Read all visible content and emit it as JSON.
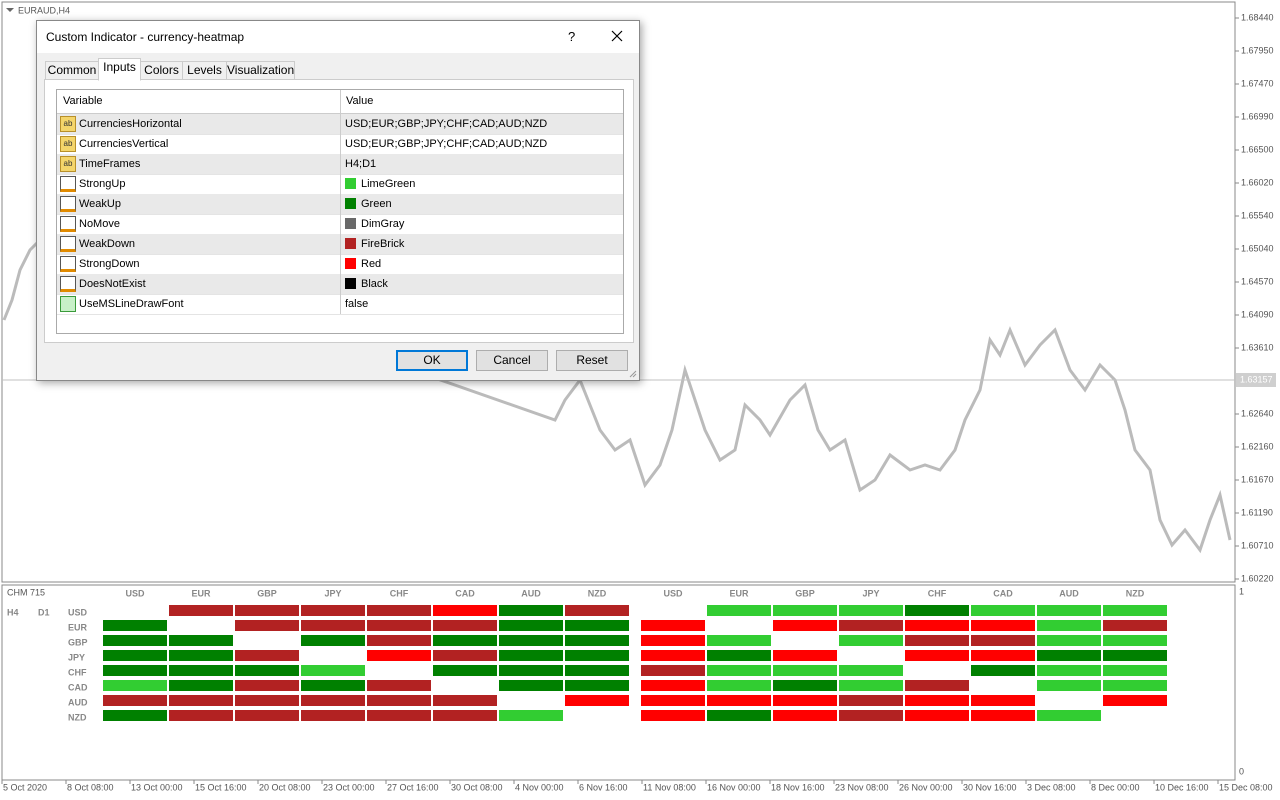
{
  "chart": {
    "symbol": "EURAUD,H4",
    "price_axis": [
      "1.68440",
      "1.67950",
      "1.67470",
      "1.66990",
      "1.66500",
      "1.66020",
      "1.65540",
      "1.65040",
      "1.64570",
      "1.64090",
      "1.63610",
      null,
      "1.62640",
      "1.62160",
      "1.61670",
      "1.61190",
      "1.60710",
      "1.60220"
    ],
    "current_price": "1.63157",
    "time_axis": [
      "5 Oct 2020",
      "8 Oct 08:00",
      "13 Oct 00:00",
      "15 Oct 16:00",
      "20 Oct 08:00",
      "23 Oct 00:00",
      "27 Oct 16:00",
      "30 Oct 08:00",
      "4 Nov 00:00",
      "6 Nov 16:00",
      "11 Nov 08:00",
      "16 Nov 00:00",
      "18 Nov 16:00",
      "23 Nov 08:00",
      "26 Nov 00:00",
      "30 Nov 16:00",
      "3 Dec 08:00",
      "8 Dec 00:00",
      "10 Dec 16:00",
      "15 Dec 08:00"
    ]
  },
  "indicator": {
    "name": "CHM 715",
    "scale": [
      "1",
      "0"
    ],
    "timeframes": [
      "H4",
      "D1"
    ],
    "currencies": [
      "USD",
      "EUR",
      "GBP",
      "JPY",
      "CHF",
      "CAD",
      "AUD",
      "NZD"
    ],
    "heatmaps": [
      [
        [
          null,
          "FireBrick",
          "FireBrick",
          "FireBrick",
          "FireBrick",
          "Red",
          "Green",
          "FireBrick"
        ],
        [
          "Green",
          null,
          "FireBrick",
          "FireBrick",
          "FireBrick",
          "FireBrick",
          "Green",
          "Green"
        ],
        [
          "Green",
          "Green",
          null,
          "Green",
          "FireBrick",
          "Green",
          "Green",
          "Green"
        ],
        [
          "Green",
          "Green",
          "FireBrick",
          null,
          "Red",
          "FireBrick",
          "Green",
          "Green"
        ],
        [
          "Green",
          "Green",
          "Green",
          "LimeGreen",
          null,
          "Green",
          "Green",
          "Green"
        ],
        [
          "LimeGreen",
          "Green",
          "FireBrick",
          "Green",
          "FireBrick",
          null,
          "Green",
          "Green"
        ],
        [
          "FireBrick",
          "FireBrick",
          "FireBrick",
          "FireBrick",
          "FireBrick",
          "FireBrick",
          null,
          "Red"
        ],
        [
          "Green",
          "FireBrick",
          "FireBrick",
          "FireBrick",
          "FireBrick",
          "FireBrick",
          "LimeGreen",
          null
        ]
      ],
      [
        [
          null,
          "LimeGreen",
          "LimeGreen",
          "LimeGreen",
          "Green",
          "LimeGreen",
          "LimeGreen",
          "LimeGreen"
        ],
        [
          "Red",
          null,
          "Red",
          "FireBrick",
          "Red",
          "Red",
          "LimeGreen",
          "FireBrick"
        ],
        [
          "Red",
          "LimeGreen",
          null,
          "LimeGreen",
          "FireBrick",
          "FireBrick",
          "LimeGreen",
          "LimeGreen"
        ],
        [
          "Red",
          "Green",
          "Red",
          null,
          "Red",
          "Red",
          "Green",
          "Green"
        ],
        [
          "FireBrick",
          "LimeGreen",
          "LimeGreen",
          "LimeGreen",
          null,
          "Green",
          "LimeGreen",
          "LimeGreen"
        ],
        [
          "Red",
          "LimeGreen",
          "Green",
          "LimeGreen",
          "FireBrick",
          null,
          "LimeGreen",
          "LimeGreen"
        ],
        [
          "Red",
          "Red",
          "Red",
          "FireBrick",
          "Red",
          "Red",
          null,
          "Red"
        ],
        [
          "Red",
          "Green",
          "Red",
          "FireBrick",
          "Red",
          "Red",
          "LimeGreen",
          null
        ]
      ]
    ]
  },
  "dialog": {
    "title": "Custom Indicator - currency-heatmap",
    "help": "?",
    "tabs": [
      "Common",
      "Inputs",
      "Colors",
      "Levels",
      "Visualization"
    ],
    "active_tab": 1,
    "columns": [
      "Variable",
      "Value"
    ],
    "inputs": [
      {
        "name": "CurrenciesHorizontal",
        "value": "USD;EUR;GBP;JPY;CHF;CAD;AUD;NZD"
      },
      {
        "name": "CurrenciesVertical",
        "value": "USD;EUR;GBP;JPY;CHF;CAD;AUD;NZD"
      },
      {
        "name": "TimeFrames",
        "value": "H4;D1"
      },
      {
        "name": "StrongUp",
        "value": "LimeGreen"
      },
      {
        "name": "WeakUp",
        "value": "Green"
      },
      {
        "name": "NoMove",
        "value": "DimGray"
      },
      {
        "name": "WeakDown",
        "value": "FireBrick"
      },
      {
        "name": "StrongDown",
        "value": "Red"
      },
      {
        "name": "DoesNotExist",
        "value": "Black"
      },
      {
        "name": "UseMSLineDrawFont",
        "value": "false"
      }
    ],
    "buttons": [
      "OK",
      "Cancel",
      "Reset"
    ],
    "default_button": 0
  }
}
